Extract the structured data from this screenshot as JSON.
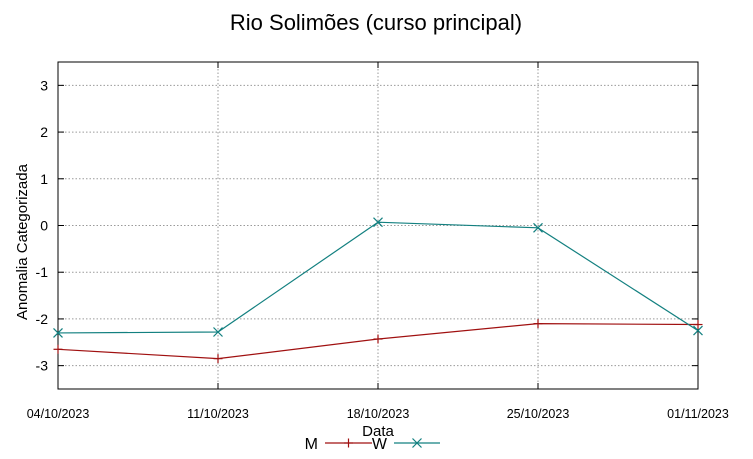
{
  "chart_data": {
    "type": "line",
    "title": "Rio Solimões (curso principal)",
    "xlabel": "Data",
    "ylabel": "Anomalia Categorizada",
    "categories": [
      "04/10/2023",
      "11/10/2023",
      "18/10/2023",
      "25/10/2023",
      "01/11/2023"
    ],
    "yticks": [
      "3",
      "2",
      "1",
      "0",
      "-1",
      "-2",
      "-3"
    ],
    "ylim": [
      -3.5,
      3.5
    ],
    "grid": true,
    "legend_position": "bottom",
    "series": [
      {
        "name": "M",
        "color": "#a01010",
        "marker": "plus",
        "values": [
          -2.65,
          -2.85,
          -2.43,
          -2.1,
          -2.12
        ]
      },
      {
        "name": "W",
        "color": "#138080",
        "marker": "cross",
        "values": [
          -2.3,
          -2.28,
          0.07,
          -0.05,
          -2.25
        ]
      }
    ]
  }
}
